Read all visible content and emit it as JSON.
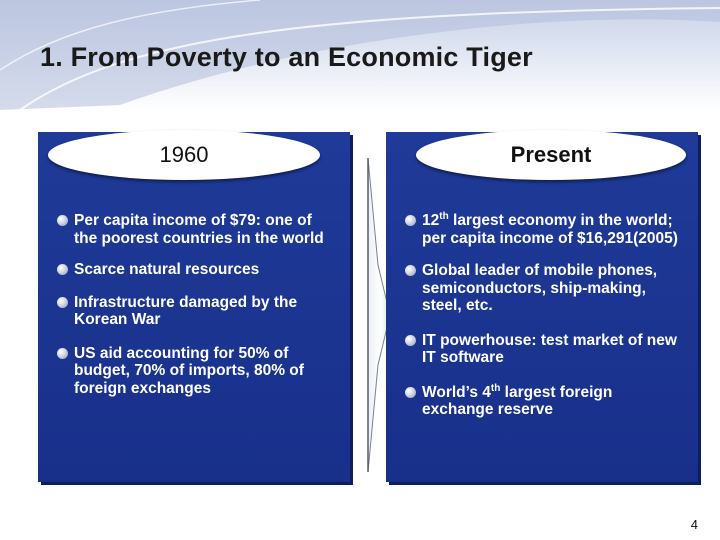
{
  "title": "1.  From Poverty to an Economic Tiger",
  "left_panel": {
    "header": "1960",
    "items": [
      {
        "text": "Per capita income of $79: one of the poorest countries in the world"
      },
      {
        "text": "Scarce natural resources"
      },
      {
        "text": "Infrastructure damaged by the Korean War"
      },
      {
        "text": "US aid accounting for 50% of budget, 70% of imports, 80% of foreign exchanges"
      }
    ]
  },
  "right_panel": {
    "header": "Present",
    "items": [
      {
        "pre": "12",
        "sup": "th",
        "post": " largest economy in the world; per capita income of $16,291(2005)"
      },
      {
        "pre": "Global leader of mobile phones, semiconductors, ship-making, steel, etc.",
        "sup": "",
        "post": ""
      },
      {
        "pre": "IT powerhouse: test market of new IT software",
        "sup": "",
        "post": ""
      },
      {
        "pre": "World’s 4",
        "sup": "th",
        "post": " largest foreign exchange reserve"
      }
    ]
  },
  "page_number": "4",
  "colors": {
    "panel": "#1f3a98",
    "title_band": "#c7d0e6",
    "text_on_panel": "#ffffff"
  }
}
